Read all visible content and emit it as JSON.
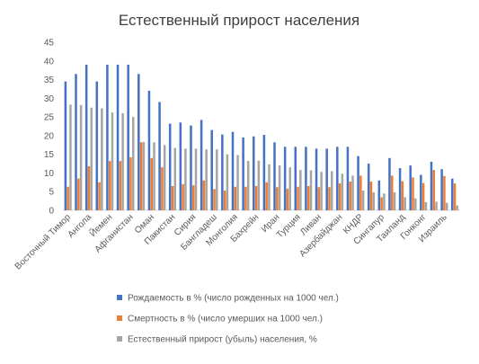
{
  "chart_data": {
    "type": "bar",
    "title": "Естественный прирост населения",
    "categories": [
      "Восточный Тимор",
      null,
      "Ангола",
      null,
      "Йемен",
      null,
      "Афганистан",
      null,
      "Оман",
      null,
      "Пакистан",
      null,
      "Сирия",
      null,
      "Бангладеш",
      null,
      "Монголия",
      null,
      "Бахрейн",
      null,
      "Иран",
      null,
      "Турция",
      null,
      "Ливан",
      null,
      "Азербайджан",
      null,
      "КНДР",
      null,
      "Сингапур",
      null,
      "Таиланд",
      null,
      "Гонконг",
      null,
      "Израиль",
      null
    ],
    "series": [
      {
        "name": "Рождаемость в % (число рожденных на 1000 чел.)",
        "color": "#4472c4",
        "values": [
          34.5,
          36.5,
          39,
          34.5,
          39,
          39,
          39,
          36.5,
          32,
          29,
          23.2,
          23.5,
          22.7,
          24.2,
          21.5,
          20.3,
          21,
          19.5,
          19.8,
          20.2,
          18.2,
          17,
          17,
          17,
          16.5,
          16.5,
          17,
          17,
          14.5,
          12.5,
          8,
          14,
          11.3,
          12,
          9.5,
          13,
          11,
          8.5
        ]
      },
      {
        "name": "Смертность в % (число умерших на 1000 чел.)",
        "color": "#ed7d31",
        "values": [
          6.3,
          8.5,
          11.8,
          7.5,
          13.2,
          13.2,
          14.2,
          18.2,
          14,
          11.5,
          6.5,
          7,
          6.7,
          8,
          5.7,
          5.3,
          6.3,
          6.3,
          6.5,
          7.5,
          6.2,
          5.8,
          6.3,
          6.5,
          6.2,
          6.2,
          7.2,
          7.7,
          9.3,
          7.7,
          3.5,
          9.3,
          7.8,
          8.8,
          7.3,
          10.8,
          9.2,
          7.2
        ]
      },
      {
        "name": "Естественный прирост (убыль) населения, %",
        "color": "#a5a5a5",
        "values": [
          28.3,
          28.2,
          27.5,
          27.3,
          26.2,
          26,
          25,
          18.3,
          18.2,
          17.5,
          16.7,
          16.5,
          16.5,
          16.3,
          16.3,
          15,
          14.8,
          13.2,
          13.3,
          12.3,
          12,
          11.5,
          10.8,
          10.7,
          10.3,
          10.5,
          9.8,
          9.3,
          5.3,
          4.8,
          4.5,
          4.8,
          3.5,
          3.2,
          2.2,
          2.3,
          2,
          1.3
        ]
      }
    ],
    "ylim": [
      0,
      45
    ],
    "yticks": [
      0,
      5,
      10,
      15,
      20,
      25,
      30,
      35,
      40,
      45
    ],
    "grid": false
  }
}
